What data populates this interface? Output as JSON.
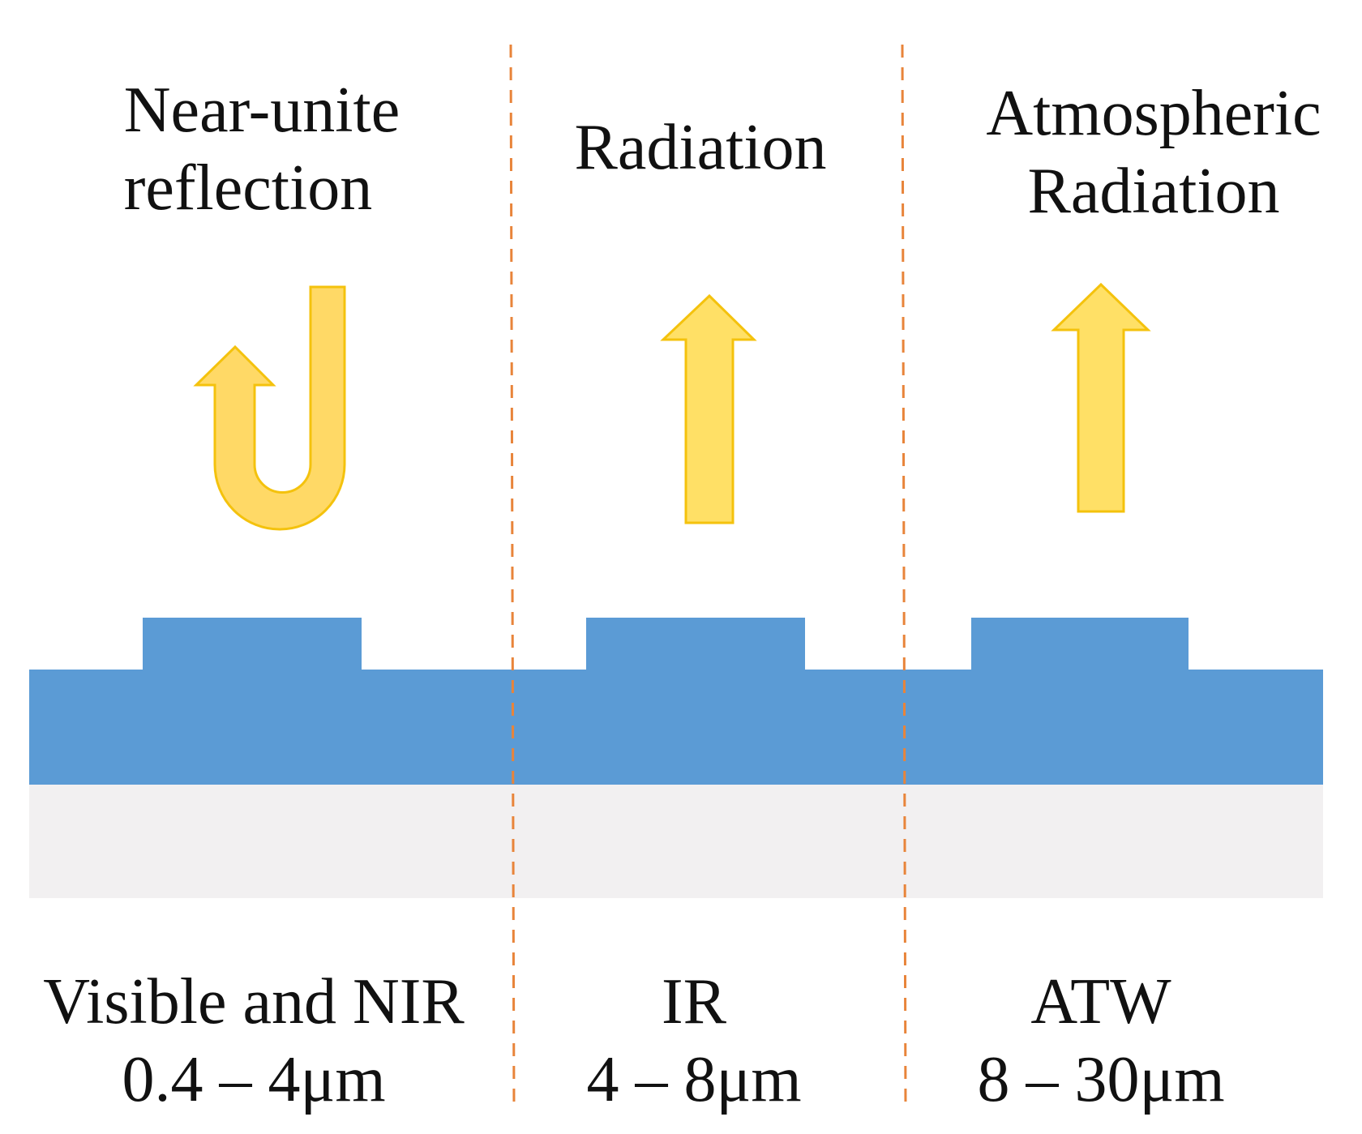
{
  "colors": {
    "divider": "#E8843A",
    "coating": "#5B9BD5",
    "substrate": "#F2F0F1",
    "arrow_fill_reflect": "#FFD966",
    "arrow_fill_up": "#FFE066",
    "arrow_stroke": "#F4C20D",
    "text": "#111111"
  },
  "columns": [
    {
      "id": "visible-nir",
      "top_lines": [
        "Near-unite",
        "reflection"
      ],
      "bottom_lines": [
        "Visible and NIR",
        "0.4 – 4μm"
      ],
      "arrow": "u-turn-arrow-icon"
    },
    {
      "id": "ir",
      "top_lines": [
        "Radiation"
      ],
      "bottom_lines": [
        "IR",
        "4 – 8μm"
      ],
      "arrow": "up-arrow-icon"
    },
    {
      "id": "atw",
      "top_lines": [
        "Atmospheric",
        "Radiation"
      ],
      "bottom_lines": [
        "ATW",
        "8 – 30μm"
      ],
      "arrow": "up-arrow-icon"
    }
  ]
}
